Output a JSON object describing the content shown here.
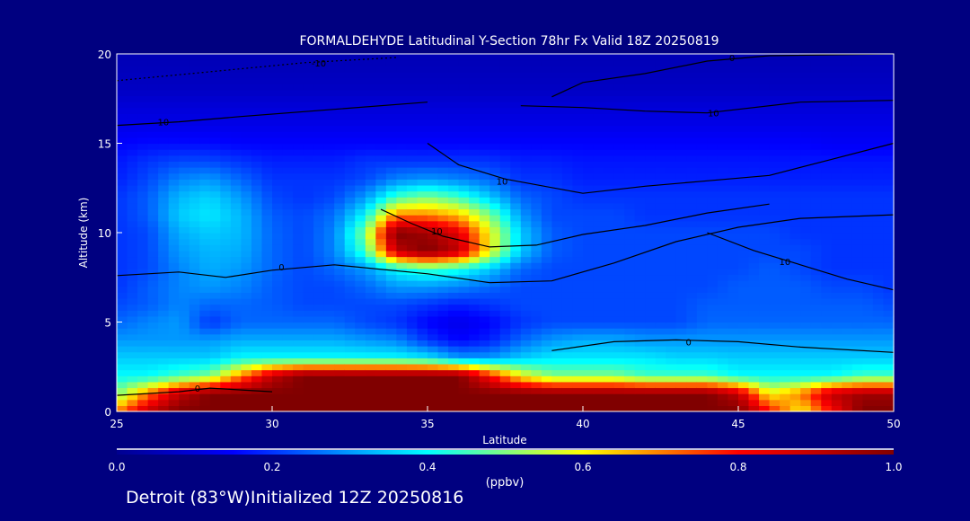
{
  "chart_data": {
    "type": "heatmap",
    "title": "FORMALDEHYDE Latitudinal Y-Section 78hr  Fx Valid 18Z 20250819",
    "xlabel": "Latitude",
    "ylabel": "Altitude (km)",
    "xlim": [
      25,
      50
    ],
    "ylim": [
      0,
      20
    ],
    "xticks": [
      "25",
      "30",
      "35",
      "40",
      "45",
      "50"
    ],
    "yticks": [
      "0",
      "5",
      "10",
      "15",
      "20"
    ],
    "colorbar": {
      "label": "(ppbv)",
      "range": [
        0,
        1
      ],
      "ticks": [
        "0.0",
        "0.2",
        "0.4",
        "0.6",
        "0.8",
        "1.0"
      ],
      "stops": [
        [
          0,
          "#000090"
        ],
        [
          0.15,
          "#0000ff"
        ],
        [
          0.4,
          "#00ffff"
        ],
        [
          0.5,
          "#80ff80"
        ],
        [
          0.6,
          "#ffff00"
        ],
        [
          0.8,
          "#ff0000"
        ],
        [
          1.0,
          "#800000"
        ]
      ]
    },
    "x": [
      25,
      26,
      27,
      28,
      29,
      30,
      31,
      32,
      33,
      34,
      35,
      36,
      37,
      38,
      39,
      40,
      41,
      42,
      43,
      44,
      45,
      46,
      47,
      48,
      49,
      50
    ],
    "y": [
      0,
      1,
      2,
      3,
      4,
      5,
      6,
      7,
      8,
      9,
      10,
      11,
      12,
      13,
      14,
      15,
      16,
      17,
      18,
      19,
      20
    ],
    "z": [
      [
        0.7,
        0.9,
        1,
        1,
        1,
        1,
        1,
        1,
        1,
        1,
        1,
        1,
        1,
        1,
        1,
        1,
        1,
        1,
        1,
        1,
        1,
        0.8,
        0.6,
        0.8,
        1,
        1
      ],
      [
        0.5,
        0.7,
        0.9,
        1,
        1,
        1,
        1,
        1,
        1,
        1,
        1,
        1,
        1,
        1,
        1,
        1,
        1,
        1,
        1,
        1,
        0.9,
        0.6,
        0.7,
        0.9,
        0.95,
        0.95
      ],
      [
        0.4,
        0.4,
        0.45,
        0.5,
        0.7,
        0.9,
        1,
        1,
        1,
        1,
        1,
        1,
        0.8,
        0.6,
        0.5,
        0.5,
        0.5,
        0.45,
        0.45,
        0.45,
        0.4,
        0.4,
        0.4,
        0.4,
        0.45,
        0.45
      ],
      [
        0.35,
        0.35,
        0.35,
        0.35,
        0.4,
        0.4,
        0.4,
        0.4,
        0.4,
        0.4,
        0.38,
        0.3,
        0.3,
        0.35,
        0.38,
        0.38,
        0.38,
        0.38,
        0.36,
        0.36,
        0.35,
        0.35,
        0.35,
        0.35,
        0.35,
        0.35
      ],
      [
        0.3,
        0.3,
        0.3,
        0.3,
        0.32,
        0.32,
        0.32,
        0.32,
        0.3,
        0.28,
        0.2,
        0.15,
        0.18,
        0.25,
        0.3,
        0.32,
        0.32,
        0.3,
        0.3,
        0.3,
        0.3,
        0.3,
        0.3,
        0.3,
        0.3,
        0.3
      ],
      [
        0.25,
        0.28,
        0.3,
        0.2,
        0.25,
        0.25,
        0.25,
        0.25,
        0.22,
        0.2,
        0.15,
        0.12,
        0.15,
        0.2,
        0.22,
        0.22,
        0.22,
        0.22,
        0.22,
        0.25,
        0.25,
        0.25,
        0.25,
        0.25,
        0.25,
        0.25
      ],
      [
        0.22,
        0.24,
        0.28,
        0.25,
        0.25,
        0.24,
        0.22,
        0.22,
        0.22,
        0.22,
        0.2,
        0.18,
        0.2,
        0.22,
        0.22,
        0.22,
        0.22,
        0.22,
        0.22,
        0.24,
        0.24,
        0.24,
        0.24,
        0.24,
        0.24,
        0.22
      ],
      [
        0.2,
        0.24,
        0.28,
        0.3,
        0.28,
        0.24,
        0.22,
        0.22,
        0.25,
        0.3,
        0.3,
        0.28,
        0.25,
        0.22,
        0.22,
        0.22,
        0.22,
        0.22,
        0.22,
        0.22,
        0.24,
        0.24,
        0.24,
        0.22,
        0.22,
        0.2
      ],
      [
        0.2,
        0.22,
        0.28,
        0.32,
        0.3,
        0.25,
        0.22,
        0.25,
        0.3,
        0.4,
        0.45,
        0.42,
        0.35,
        0.25,
        0.22,
        0.22,
        0.22,
        0.22,
        0.22,
        0.22,
        0.22,
        0.24,
        0.22,
        0.2,
        0.2,
        0.2
      ],
      [
        0.2,
        0.22,
        0.3,
        0.33,
        0.32,
        0.25,
        0.22,
        0.28,
        0.45,
        0.9,
        1,
        0.9,
        0.6,
        0.35,
        0.24,
        0.22,
        0.22,
        0.22,
        0.22,
        0.22,
        0.22,
        0.22,
        0.22,
        0.2,
        0.2,
        0.2
      ],
      [
        0.2,
        0.22,
        0.32,
        0.35,
        0.33,
        0.25,
        0.22,
        0.28,
        0.5,
        1,
        0.95,
        0.85,
        0.6,
        0.35,
        0.24,
        0.22,
        0.22,
        0.22,
        0.22,
        0.22,
        0.22,
        0.22,
        0.2,
        0.2,
        0.2,
        0.2
      ],
      [
        0.2,
        0.24,
        0.35,
        0.38,
        0.33,
        0.24,
        0.22,
        0.26,
        0.4,
        0.7,
        0.7,
        0.65,
        0.5,
        0.3,
        0.22,
        0.22,
        0.22,
        0.2,
        0.2,
        0.2,
        0.2,
        0.2,
        0.2,
        0.2,
        0.2,
        0.2
      ],
      [
        0.2,
        0.24,
        0.33,
        0.36,
        0.3,
        0.22,
        0.2,
        0.22,
        0.3,
        0.45,
        0.5,
        0.45,
        0.35,
        0.25,
        0.22,
        0.2,
        0.2,
        0.2,
        0.2,
        0.2,
        0.2,
        0.2,
        0.2,
        0.2,
        0.2,
        0.2
      ],
      [
        0.18,
        0.22,
        0.28,
        0.3,
        0.25,
        0.2,
        0.2,
        0.2,
        0.22,
        0.28,
        0.3,
        0.28,
        0.25,
        0.2,
        0.2,
        0.18,
        0.18,
        0.18,
        0.18,
        0.18,
        0.18,
        0.18,
        0.18,
        0.18,
        0.18,
        0.18
      ],
      [
        0.17,
        0.2,
        0.22,
        0.22,
        0.2,
        0.18,
        0.18,
        0.18,
        0.2,
        0.2,
        0.2,
        0.2,
        0.2,
        0.18,
        0.18,
        0.17,
        0.17,
        0.17,
        0.17,
        0.17,
        0.17,
        0.17,
        0.17,
        0.17,
        0.17,
        0.17
      ],
      [
        0.15,
        0.16,
        0.16,
        0.16,
        0.15,
        0.15,
        0.15,
        0.15,
        0.15,
        0.15,
        0.15,
        0.15,
        0.15,
        0.15,
        0.15,
        0.15,
        0.15,
        0.15,
        0.15,
        0.15,
        0.15,
        0.15,
        0.15,
        0.14,
        0.14,
        0.14
      ],
      [
        0.12,
        0.12,
        0.12,
        0.12,
        0.12,
        0.12,
        0.12,
        0.12,
        0.12,
        0.12,
        0.12,
        0.12,
        0.12,
        0.12,
        0.12,
        0.12,
        0.12,
        0.12,
        0.12,
        0.12,
        0.12,
        0.12,
        0.12,
        0.12,
        0.12,
        0.12
      ],
      [
        0.1,
        0.1,
        0.1,
        0.1,
        0.1,
        0.1,
        0.1,
        0.1,
        0.1,
        0.1,
        0.1,
        0.1,
        0.1,
        0.1,
        0.1,
        0.1,
        0.1,
        0.1,
        0.1,
        0.1,
        0.1,
        0.1,
        0.1,
        0.1,
        0.1,
        0.1
      ],
      [
        0.07,
        0.07,
        0.07,
        0.07,
        0.07,
        0.07,
        0.07,
        0.07,
        0.07,
        0.07,
        0.07,
        0.07,
        0.07,
        0.07,
        0.07,
        0.07,
        0.07,
        0.07,
        0.07,
        0.07,
        0.07,
        0.07,
        0.07,
        0.07,
        0.07,
        0.07
      ],
      [
        0.06,
        0.06,
        0.06,
        0.06,
        0.06,
        0.06,
        0.06,
        0.06,
        0.06,
        0.06,
        0.06,
        0.06,
        0.06,
        0.06,
        0.06,
        0.06,
        0.06,
        0.06,
        0.06,
        0.06,
        0.06,
        0.06,
        0.06,
        0.06,
        0.06,
        0.06
      ],
      [
        0.05,
        0.05,
        0.05,
        0.05,
        0.05,
        0.05,
        0.05,
        0.05,
        0.05,
        0.05,
        0.05,
        0.05,
        0.05,
        0.05,
        0.05,
        0.05,
        0.05,
        0.05,
        0.05,
        0.05,
        0.05,
        0.05,
        0.05,
        0.05,
        0.05,
        0.05
      ]
    ],
    "contours": [
      {
        "label": "0",
        "at": [
          30.3,
          8.1
        ],
        "points": [
          [
            25,
            7.6
          ],
          [
            27,
            7.8
          ],
          [
            28.5,
            7.5
          ],
          [
            30,
            7.9
          ],
          [
            32,
            8.2
          ],
          [
            35,
            7.7
          ],
          [
            37,
            7.2
          ],
          [
            39,
            7.3
          ],
          [
            41,
            8.3
          ],
          [
            43,
            9.5
          ],
          [
            45,
            10.3
          ],
          [
            47,
            10.8
          ],
          [
            50,
            11
          ]
        ]
      },
      {
        "label": "0",
        "at": [
          43.4,
          3.9
        ],
        "points": [
          [
            39,
            3.4
          ],
          [
            41,
            3.9
          ],
          [
            43,
            4
          ],
          [
            45,
            3.9
          ],
          [
            47,
            3.6
          ],
          [
            50,
            3.3
          ]
        ]
      },
      {
        "label": "10",
        "at": [
          35.3,
          10.1
        ],
        "points": [
          [
            33.5,
            11.3
          ],
          [
            34.5,
            10.5
          ],
          [
            35.5,
            9.8
          ],
          [
            37,
            9.2
          ],
          [
            38.5,
            9.3
          ],
          [
            40,
            9.9
          ],
          [
            42,
            10.4
          ],
          [
            44,
            11.1
          ],
          [
            46,
            11.6
          ]
        ]
      },
      {
        "label": "10",
        "at": [
          46.5,
          8.4
        ],
        "points": [
          [
            44,
            10
          ],
          [
            45.5,
            9
          ],
          [
            47,
            8.2
          ],
          [
            48.5,
            7.4
          ],
          [
            50,
            6.8
          ]
        ]
      },
      {
        "label": "10",
        "at": [
          37.4,
          12.9
        ],
        "points": [
          [
            35,
            15
          ],
          [
            36,
            13.8
          ],
          [
            37.5,
            13
          ],
          [
            40,
            12.2
          ],
          [
            42,
            12.6
          ],
          [
            44,
            12.9
          ],
          [
            46,
            13.2
          ],
          [
            48,
            14.1
          ],
          [
            50,
            15
          ]
        ]
      },
      {
        "label": "10",
        "at": [
          44.2,
          16.7
        ],
        "points": [
          [
            38,
            17.1
          ],
          [
            40,
            17
          ],
          [
            42,
            16.8
          ],
          [
            44,
            16.7
          ],
          [
            47,
            17.3
          ],
          [
            50,
            17.4
          ]
        ]
      },
      {
        "label": "0",
        "at": [
          44.8,
          19.8
        ],
        "points": [
          [
            39,
            17.6
          ],
          [
            40,
            18.4
          ],
          [
            42,
            18.9
          ],
          [
            44,
            19.6
          ],
          [
            46,
            19.9
          ],
          [
            50,
            20
          ]
        ]
      },
      {
        "label": "10",
        "at": [
          26.5,
          16.2
        ],
        "points": [
          [
            25,
            16
          ],
          [
            27,
            16.2
          ],
          [
            29,
            16.5
          ],
          [
            32,
            16.9
          ],
          [
            35,
            17.3
          ]
        ]
      },
      {
        "label": "-10",
        "at": [
          31.5,
          19.5
        ],
        "points": [
          [
            25,
            18.5
          ],
          [
            28,
            19
          ],
          [
            31,
            19.5
          ],
          [
            34,
            19.8
          ]
        ]
      },
      {
        "label": "0",
        "at": [
          27.6,
          1.3
        ],
        "points": [
          [
            25,
            0.9
          ],
          [
            27,
            1.1
          ],
          [
            28,
            1.3
          ],
          [
            30,
            1.1
          ]
        ]
      }
    ]
  },
  "footer": {
    "location": "Detroit (83°W)Initialized 12Z 20250816"
  }
}
